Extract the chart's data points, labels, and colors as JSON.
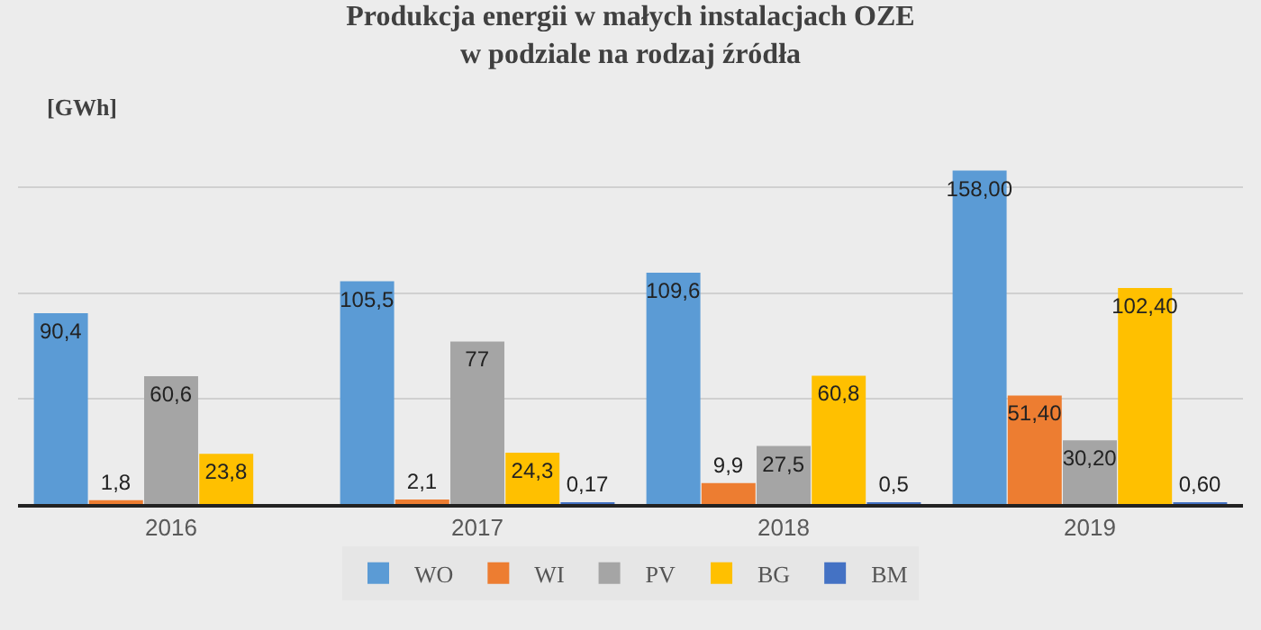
{
  "chart_data": {
    "type": "bar",
    "title": "Produkcja energii w małych instalacjach OZE\nw podziale na rodzaj źródła",
    "ylabel": "[GWh]",
    "categories": [
      "2016",
      "2017",
      "2018",
      "2019"
    ],
    "series": [
      {
        "name": "WO",
        "color": "#5b9bd5",
        "values": [
          90.4,
          105.5,
          109.6,
          158
        ],
        "value_labels": [
          "90,4",
          "105,5",
          "109,6",
          "158,00"
        ]
      },
      {
        "name": "WI",
        "color": "#ed7d31",
        "values": [
          1.8,
          2.1,
          9.9,
          51.4
        ],
        "value_labels": [
          "1,8",
          "2,1",
          "9,9",
          "51,40"
        ]
      },
      {
        "name": "PV",
        "color": "#a5a5a5",
        "values": [
          60.6,
          77,
          27.5,
          30.2
        ],
        "value_labels": [
          "60,6",
          "77",
          "27,5",
          "30,20"
        ]
      },
      {
        "name": "BG",
        "color": "#ffc000",
        "values": [
          23.8,
          24.3,
          60.8,
          102.4
        ],
        "value_labels": [
          "23,8",
          "24,3",
          "60,8",
          "102,40"
        ]
      },
      {
        "name": "BM",
        "color": "#4472c4",
        "values": [
          null,
          0.17,
          0.5,
          0.6
        ],
        "value_labels": [
          null,
          "0,17",
          "0,5",
          "0,60"
        ]
      }
    ],
    "grid": "y",
    "legend": "bottom",
    "tick_labels": "x"
  }
}
